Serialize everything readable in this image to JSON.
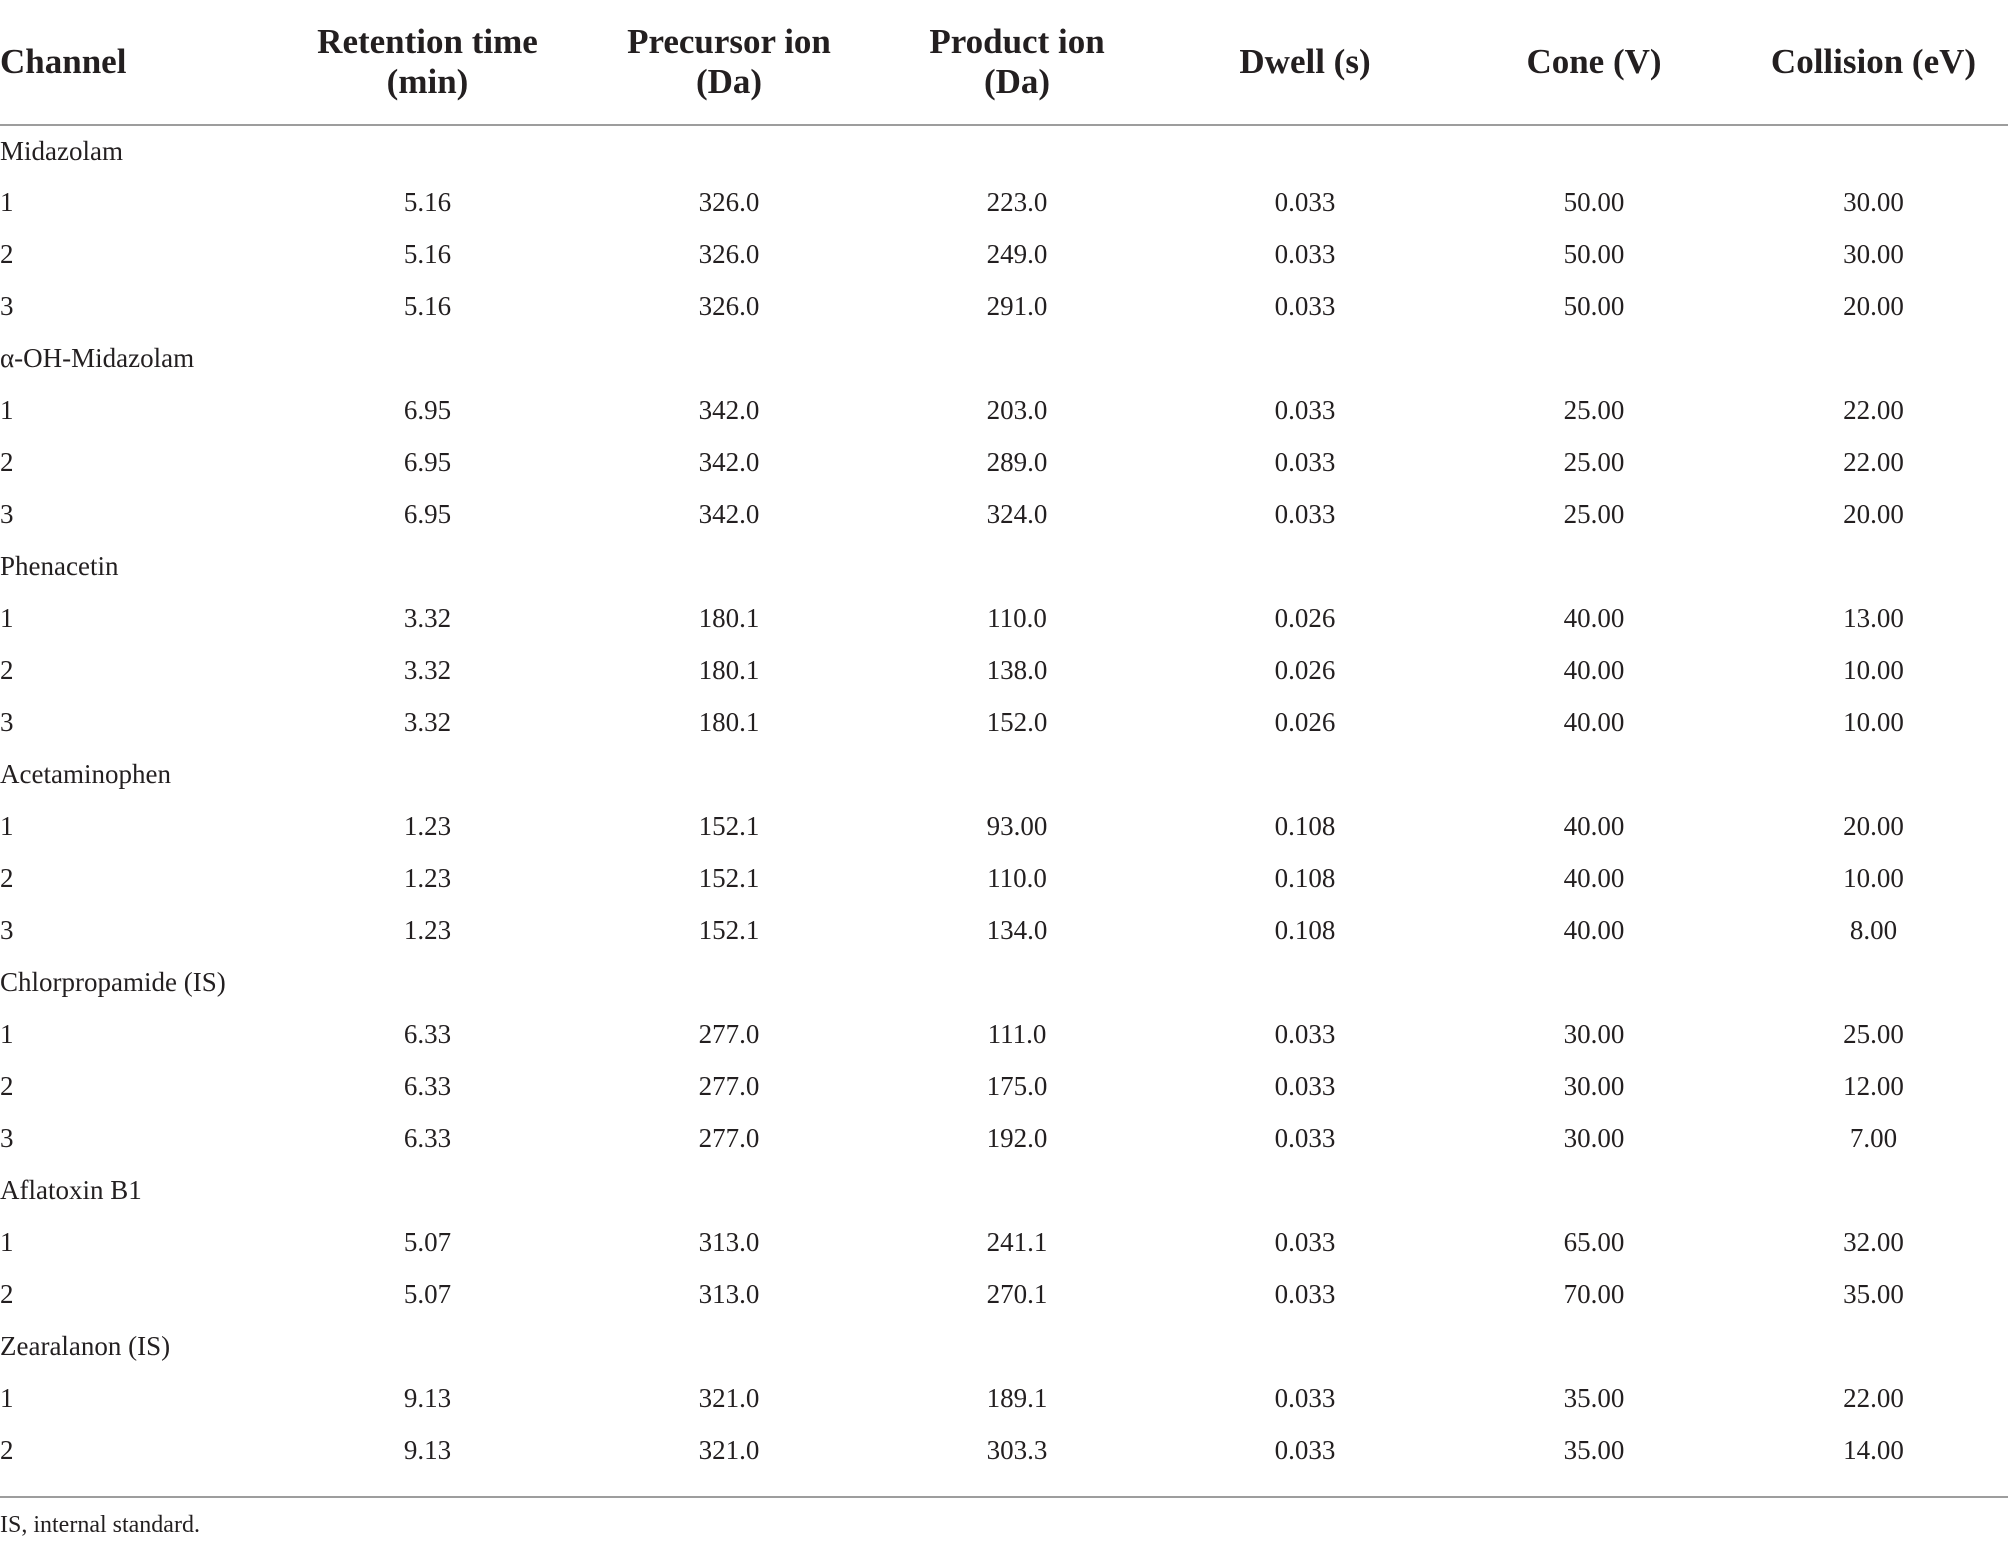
{
  "table": {
    "headers": [
      [
        "Channel"
      ],
      [
        "Retention time",
        "(min)"
      ],
      [
        "Precursor ion",
        "(Da)"
      ],
      [
        "Product ion",
        "(Da)"
      ],
      [
        "Dwell (s)"
      ],
      [
        "Cone (V)"
      ],
      [
        "Collision (eV)"
      ]
    ],
    "groups": [
      {
        "name": "Midazolam",
        "rows": [
          [
            "1",
            "5.16",
            "326.0",
            "223.0",
            "0.033",
            "50.00",
            "30.00"
          ],
          [
            "2",
            "5.16",
            "326.0",
            "249.0",
            "0.033",
            "50.00",
            "30.00"
          ],
          [
            "3",
            "5.16",
            "326.0",
            "291.0",
            "0.033",
            "50.00",
            "20.00"
          ]
        ]
      },
      {
        "name": "α-OH-Midazolam",
        "rows": [
          [
            "1",
            "6.95",
            "342.0",
            "203.0",
            "0.033",
            "25.00",
            "22.00"
          ],
          [
            "2",
            "6.95",
            "342.0",
            "289.0",
            "0.033",
            "25.00",
            "22.00"
          ],
          [
            "3",
            "6.95",
            "342.0",
            "324.0",
            "0.033",
            "25.00",
            "20.00"
          ]
        ]
      },
      {
        "name": "Phenacetin",
        "rows": [
          [
            "1",
            "3.32",
            "180.1",
            "110.0",
            "0.026",
            "40.00",
            "13.00"
          ],
          [
            "2",
            "3.32",
            "180.1",
            "138.0",
            "0.026",
            "40.00",
            "10.00"
          ],
          [
            "3",
            "3.32",
            "180.1",
            "152.0",
            "0.026",
            "40.00",
            "10.00"
          ]
        ]
      },
      {
        "name": "Acetaminophen",
        "rows": [
          [
            "1",
            "1.23",
            "152.1",
            "93.00",
            "0.108",
            "40.00",
            "20.00"
          ],
          [
            "2",
            "1.23",
            "152.1",
            "110.0",
            "0.108",
            "40.00",
            "10.00"
          ],
          [
            "3",
            "1.23",
            "152.1",
            "134.0",
            "0.108",
            "40.00",
            "8.00"
          ]
        ]
      },
      {
        "name": "Chlorpropamide (IS)",
        "rows": [
          [
            "1",
            "6.33",
            "277.0",
            "111.0",
            "0.033",
            "30.00",
            "25.00"
          ],
          [
            "2",
            "6.33",
            "277.0",
            "175.0",
            "0.033",
            "30.00",
            "12.00"
          ],
          [
            "3",
            "6.33",
            "277.0",
            "192.0",
            "0.033",
            "30.00",
            "7.00"
          ]
        ]
      },
      {
        "name": "Aflatoxin B1",
        "rows": [
          [
            "1",
            "5.07",
            "313.0",
            "241.1",
            "0.033",
            "65.00",
            "32.00"
          ],
          [
            "2",
            "5.07",
            "313.0",
            "270.1",
            "0.033",
            "70.00",
            "35.00"
          ]
        ]
      },
      {
        "name": "Zearalanon (IS)",
        "rows": [
          [
            "1",
            "9.13",
            "321.0",
            "189.1",
            "0.033",
            "35.00",
            "22.00"
          ],
          [
            "2",
            "9.13",
            "321.0",
            "303.3",
            "0.033",
            "35.00",
            "14.00"
          ]
        ]
      }
    ],
    "footnote": "IS, internal standard."
  }
}
